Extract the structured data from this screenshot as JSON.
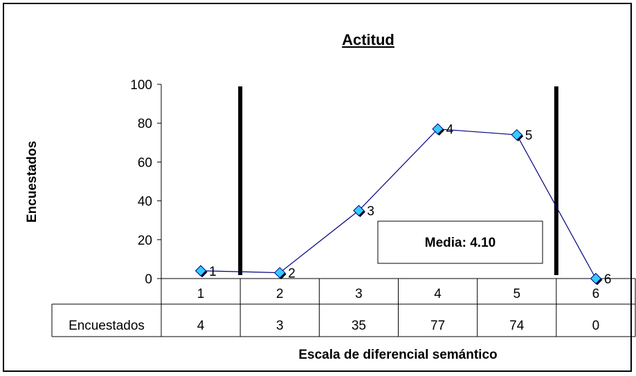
{
  "chart_data": {
    "type": "line",
    "title": "Actitud",
    "xlabel": "Escala de diferencial semántico",
    "ylabel": "Encuestados",
    "ylim": [
      0,
      100
    ],
    "yticks": [
      "0",
      "20",
      "40",
      "60",
      "80",
      "100"
    ],
    "categories": [
      "1",
      "2",
      "3",
      "4",
      "5",
      "6"
    ],
    "series": [
      {
        "name": "Encuestados",
        "values": [
          4,
          3,
          35,
          77,
          74,
          0
        ]
      }
    ],
    "point_labels": [
      "1",
      "2",
      "3",
      "4",
      "5",
      "6"
    ],
    "table": {
      "row_header": "Encuestados",
      "values": [
        "4",
        "3",
        "35",
        "77",
        "74",
        "0"
      ]
    },
    "annotation": "Media: 4.10",
    "vertical_markers_between": [
      [
        1,
        2
      ],
      [
        5,
        6
      ]
    ],
    "colors": {
      "line": "#000080",
      "marker": "#33ccff",
      "marker_shadow": "#000000",
      "marker_rule": "#000000"
    },
    "grid": false,
    "legend": "none"
  }
}
